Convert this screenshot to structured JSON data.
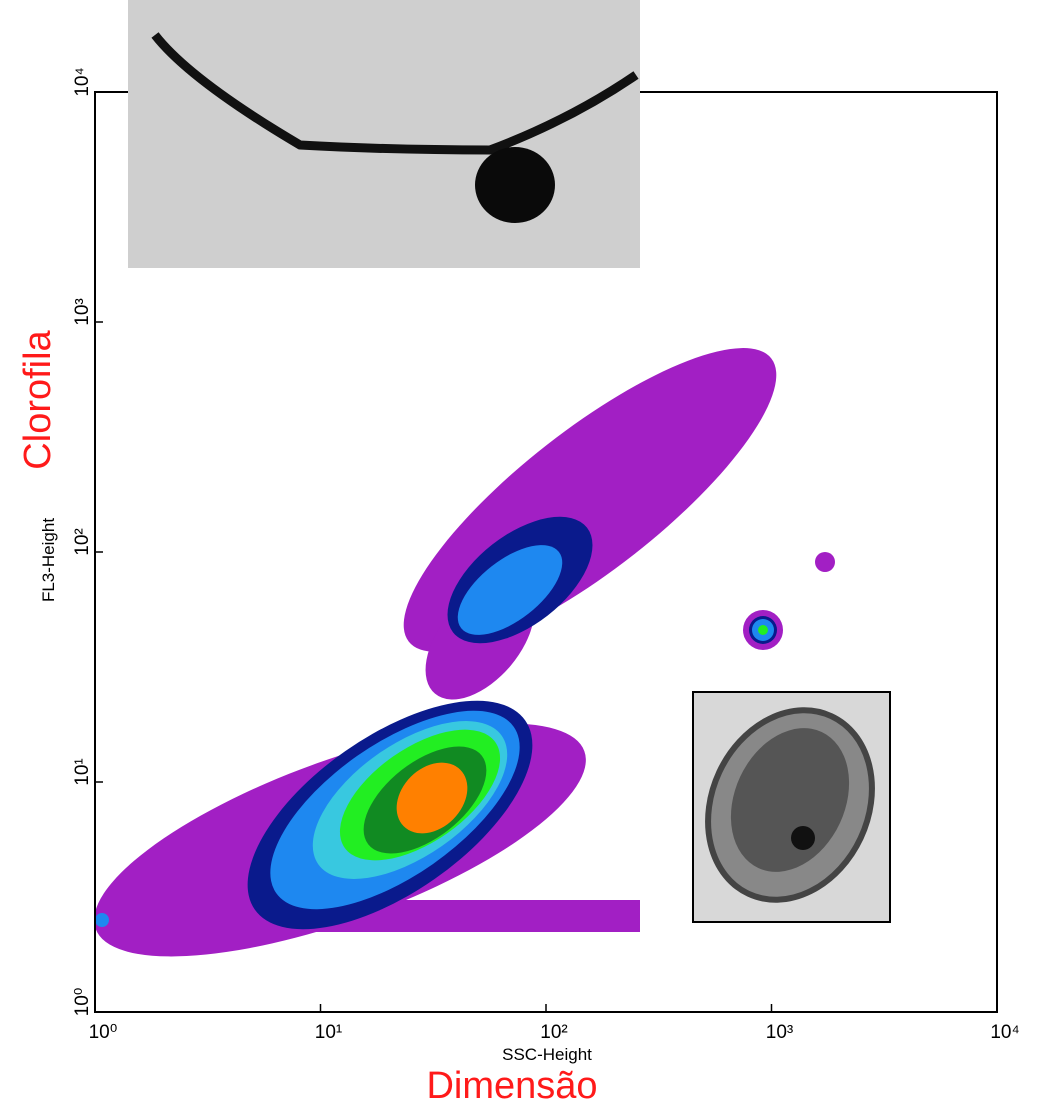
{
  "chart_data": {
    "type": "density",
    "xlabel": "SSC-Height",
    "ylabel": "FL3-Height",
    "x_annotation": "Dimensão",
    "y_annotation": "Clorofila",
    "annotation_color": "#ff1a1a",
    "xscale": "log",
    "yscale": "log",
    "xlim": [
      1,
      10000
    ],
    "ylim": [
      1,
      10000
    ],
    "xticks": [
      {
        "value": 1,
        "label": "10⁰"
      },
      {
        "value": 10,
        "label": "10¹"
      },
      {
        "value": 100,
        "label": "10²"
      },
      {
        "value": 1000,
        "label": "10³"
      },
      {
        "value": 10000,
        "label": "10⁴"
      }
    ],
    "yticks": [
      {
        "value": 1,
        "label": "10⁰"
      },
      {
        "value": 10,
        "label": "10¹"
      },
      {
        "value": 100,
        "label": "10²"
      },
      {
        "value": 1000,
        "label": "10³"
      },
      {
        "value": 10000,
        "label": "10⁴"
      }
    ]
  }
}
